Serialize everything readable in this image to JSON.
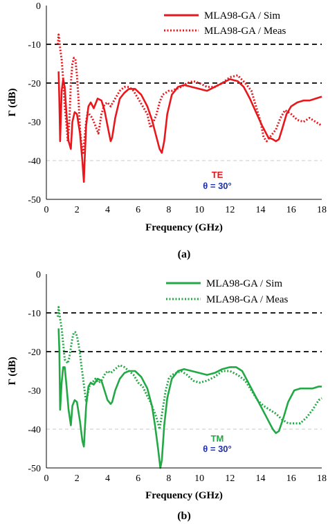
{
  "chart_data": [
    {
      "type": "line",
      "panel_label": "(a)",
      "xlabel": "Frequency (GHz)",
      "ylabel": "Γ (dB)",
      "xlim": [
        0,
        18
      ],
      "ylim": [
        -50,
        0
      ],
      "xticks": [
        0,
        2,
        4,
        6,
        8,
        10,
        12,
        14,
        16,
        18
      ],
      "yticks": [
        0,
        -10,
        -20,
        -30,
        -40,
        -50
      ],
      "grid": "dashed horizontal lines at -10 and -20 (black) and -40 (light grey)",
      "legend_position": "top-right",
      "annotation_mode": "TE",
      "annotation_angle": "θ = 30°",
      "colors": {
        "series": "#e8171c",
        "mode": "#e8171c",
        "angle": "#1f2fa8",
        "ref": "#000000",
        "light": "#c8c8c8"
      },
      "series": [
        {
          "name": "MLA98-GA / Sim",
          "style": "solid",
          "x": [
            0.8,
            0.85,
            0.9,
            1.0,
            1.1,
            1.2,
            1.3,
            1.45,
            1.6,
            1.7,
            1.85,
            2.0,
            2.2,
            2.35,
            2.45,
            2.5,
            2.6,
            2.75,
            2.9,
            3.1,
            3.35,
            3.6,
            3.8,
            4.0,
            4.2,
            4.3,
            4.5,
            4.8,
            5.1,
            5.4,
            5.8,
            6.2,
            6.6,
            6.9,
            7.2,
            7.4,
            7.55,
            7.7,
            7.9,
            8.2,
            8.6,
            9.0,
            9.5,
            10.0,
            10.5,
            11.0,
            11.5,
            12.0,
            12.5,
            12.9,
            13.3,
            13.7,
            14.1,
            14.5,
            14.8,
            15.0,
            15.2,
            15.4,
            15.7,
            16.0,
            16.4,
            16.8,
            17.2,
            17.6,
            18.0
          ],
          "y": [
            -17,
            -25,
            -35,
            -22,
            -19,
            -21,
            -27,
            -35,
            -37,
            -30,
            -27.5,
            -28,
            -33,
            -40,
            -45.5,
            -40,
            -31,
            -26,
            -25,
            -26.5,
            -24,
            -24.5,
            -27,
            -31,
            -35,
            -34,
            -29,
            -24,
            -22.5,
            -21.5,
            -21.5,
            -23,
            -26,
            -29.5,
            -34,
            -37,
            -38,
            -35,
            -28,
            -23,
            -21,
            -20.5,
            -21,
            -21.5,
            -22,
            -21,
            -20,
            -19,
            -19.5,
            -21,
            -24,
            -27.5,
            -31,
            -34,
            -34.5,
            -35,
            -34.5,
            -32,
            -28,
            -26,
            -25,
            -24.5,
            -24.5,
            -24,
            -23.5
          ]
        },
        {
          "name": "MLA98-GA / Meas",
          "style": "dotted",
          "x": [
            0.75,
            0.8,
            0.85,
            0.9,
            1.0,
            1.1,
            1.2,
            1.3,
            1.4,
            1.5,
            1.6,
            1.7,
            1.8,
            1.9,
            2.0,
            2.1,
            2.2,
            2.3,
            2.4,
            2.5,
            2.6,
            2.7,
            2.8,
            3.0,
            3.2,
            3.4,
            3.6,
            3.8,
            4.0,
            4.2,
            4.5,
            4.8,
            5.1,
            5.4,
            5.7,
            6.0,
            6.3,
            6.6,
            6.8,
            7.0,
            7.2,
            7.4,
            7.6,
            7.8,
            8.0,
            8.2,
            8.5,
            8.8,
            9.2,
            9.6,
            10.0,
            10.5,
            11.0,
            11.5,
            12.0,
            12.5,
            13.0,
            13.4,
            13.7,
            14.0,
            14.2,
            14.4,
            14.6,
            14.8,
            15.0,
            15.3,
            15.6,
            16.0,
            16.4,
            16.8,
            17.2,
            17.6,
            18.0
          ],
          "y": [
            -10,
            -7.5,
            -9,
            -11,
            -14,
            -19,
            -26,
            -30,
            -35,
            -30,
            -20,
            -15,
            -13.5,
            -14,
            -18,
            -24,
            -32,
            -36,
            -38,
            -34,
            -30,
            -27.5,
            -28,
            -29,
            -31,
            -33,
            -28,
            -25.5,
            -25,
            -26,
            -24,
            -22,
            -21,
            -21,
            -22,
            -24,
            -26,
            -28,
            -31.5,
            -30,
            -28,
            -25,
            -23,
            -22.5,
            -22,
            -22,
            -21.5,
            -21,
            -20,
            -19.5,
            -20,
            -21,
            -21,
            -20,
            -18.5,
            -18,
            -20,
            -22,
            -26,
            -30,
            -34,
            -35,
            -34,
            -33,
            -32,
            -29,
            -27,
            -28,
            -29.5,
            -30,
            -29,
            -30,
            -31
          ]
        }
      ]
    },
    {
      "type": "line",
      "panel_label": "(b)",
      "xlabel": "Frequency (GHz)",
      "ylabel": "Γ (dB)",
      "xlim": [
        0,
        18
      ],
      "ylim": [
        -50,
        0
      ],
      "xticks": [
        0,
        2,
        4,
        6,
        8,
        10,
        12,
        14,
        16,
        18
      ],
      "yticks": [
        0,
        -10,
        -20,
        -30,
        -40,
        -50
      ],
      "grid": "dashed horizontal lines at -10 and -20 (black) and -40 (light grey)",
      "legend_position": "top-right",
      "annotation_mode": "TM",
      "annotation_angle": "θ = 30°",
      "colors": {
        "series": "#22a844",
        "mode": "#22a844",
        "angle": "#1f2fa8",
        "ref": "#000000",
        "light": "#c8c8c8"
      },
      "series": [
        {
          "name": "MLA98-GA / Sim",
          "style": "solid",
          "x": [
            0.8,
            0.85,
            0.9,
            1.0,
            1.1,
            1.2,
            1.3,
            1.45,
            1.6,
            1.7,
            1.85,
            2.0,
            2.2,
            2.35,
            2.45,
            2.5,
            2.6,
            2.75,
            2.9,
            3.1,
            3.35,
            3.6,
            3.8,
            4.0,
            4.2,
            4.3,
            4.5,
            4.8,
            5.1,
            5.4,
            5.8,
            6.2,
            6.6,
            6.9,
            7.1,
            7.3,
            7.45,
            7.55,
            7.7,
            7.9,
            8.2,
            8.6,
            9.0,
            9.5,
            10.0,
            10.5,
            11.0,
            11.5,
            12.0,
            12.4,
            12.8,
            13.2,
            13.6,
            14.0,
            14.4,
            14.8,
            15.0,
            15.2,
            15.5,
            15.8,
            16.2,
            16.6,
            17.0,
            17.4,
            17.8,
            18.0
          ],
          "y": [
            -14,
            -20,
            -35,
            -28,
            -24,
            -24,
            -28,
            -35,
            -39,
            -34,
            -32.5,
            -33,
            -38,
            -43,
            -44.5,
            -41,
            -34,
            -29,
            -28,
            -28.5,
            -27,
            -27.5,
            -30,
            -32.5,
            -33.5,
            -33,
            -30,
            -27,
            -25.5,
            -25,
            -25,
            -26.5,
            -29.5,
            -34,
            -39,
            -45,
            -50,
            -48,
            -39,
            -32,
            -27,
            -25,
            -24.5,
            -25,
            -25.5,
            -26,
            -25.5,
            -24.5,
            -24,
            -24,
            -25,
            -28,
            -31,
            -34,
            -37,
            -40,
            -41,
            -40.5,
            -37,
            -33,
            -30,
            -29.5,
            -29.5,
            -29.5,
            -29,
            -29
          ]
        },
        {
          "name": "MLA98-GA / Meas",
          "style": "dotted",
          "x": [
            0.75,
            0.8,
            0.85,
            0.9,
            1.0,
            1.1,
            1.2,
            1.3,
            1.4,
            1.5,
            1.6,
            1.7,
            1.8,
            1.9,
            2.0,
            2.1,
            2.2,
            2.3,
            2.4,
            2.5,
            2.6,
            2.7,
            2.8,
            3.0,
            3.2,
            3.4,
            3.6,
            3.8,
            4.0,
            4.2,
            4.5,
            4.8,
            5.1,
            5.4,
            5.7,
            6.0,
            6.3,
            6.6,
            6.8,
            7.0,
            7.2,
            7.4,
            7.6,
            7.8,
            8.0,
            8.2,
            8.5,
            8.8,
            9.2,
            9.6,
            10.0,
            10.5,
            11.0,
            11.5,
            12.0,
            12.5,
            13.0,
            13.4,
            13.8,
            14.2,
            14.6,
            15.0,
            15.4,
            15.8,
            16.2,
            16.6,
            17.0,
            17.4,
            17.8,
            18.0
          ],
          "y": [
            -11,
            -8.5,
            -10,
            -11.5,
            -14,
            -18,
            -22,
            -22.5,
            -23,
            -21.5,
            -19,
            -16.5,
            -15,
            -15,
            -16,
            -18,
            -20.5,
            -24,
            -27,
            -30,
            -33,
            -31,
            -29,
            -28,
            -27,
            -28,
            -27.5,
            -26,
            -25,
            -25.5,
            -24.5,
            -23.5,
            -24,
            -25,
            -26,
            -28,
            -29,
            -31.5,
            -33,
            -35,
            -37,
            -40,
            -35,
            -30,
            -27,
            -26,
            -25.5,
            -25,
            -26,
            -27.5,
            -28,
            -27.5,
            -26.5,
            -25,
            -25,
            -26,
            -27.5,
            -30,
            -32.5,
            -34,
            -35,
            -36,
            -37.5,
            -38.5,
            -38.5,
            -38.5,
            -37,
            -35,
            -32.5,
            -32
          ]
        }
      ]
    }
  ]
}
